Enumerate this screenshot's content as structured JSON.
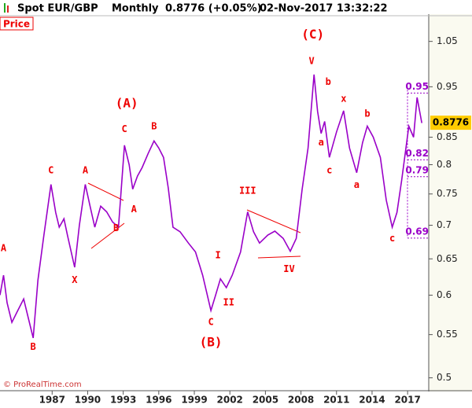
{
  "header": {
    "instrument": "Spot EUR/GBP",
    "period": "Monthly",
    "quote": "0.8776 (+0.05%)",
    "timestamp": "02-Nov-2017 13:32:22"
  },
  "chart_data": {
    "type": "line",
    "panel_label": "Price",
    "credit": "© ProRealTime.com",
    "log_scale": true,
    "xlim": [
      1982.6,
      2018.65
    ],
    "ylim": [
      0.486,
      1.115
    ],
    "xticks": [
      1987,
      1990,
      1993,
      1996,
      1999,
      2002,
      2005,
      2008,
      2011,
      2014,
      2017
    ],
    "yticks": [
      0.5,
      0.55,
      0.6,
      0.65,
      0.7,
      0.75,
      0.8,
      0.85,
      0.95,
      1.05
    ],
    "series": [
      {
        "name": "Spot EUR/GBP",
        "color": "#9a00c8",
        "x": [
          1982.6,
          1982.9,
          1983.2,
          1983.6,
          1984.1,
          1984.6,
          1985.0,
          1985.4,
          1985.8,
          1986.3,
          1986.9,
          1987.3,
          1987.6,
          1988.0,
          1988.3,
          1988.9,
          1989.3,
          1989.8,
          1990.2,
          1990.6,
          1991.1,
          1991.6,
          1992.1,
          1992.6,
          1993.1,
          1993.5,
          1993.8,
          1994.2,
          1994.6,
          1995.1,
          1995.6,
          1996.0,
          1996.4,
          1996.8,
          1997.2,
          1997.8,
          1998.5,
          1999.1,
          1999.7,
          2000.4,
          2000.8,
          2001.2,
          2001.7,
          2002.2,
          2002.9,
          2003.5,
          2004.0,
          2004.5,
          2005.2,
          2005.8,
          2006.5,
          2007.1,
          2007.6,
          2008.1,
          2008.6,
          2009.1,
          2009.4,
          2009.7,
          2010.0,
          2010.4,
          2011.0,
          2011.6,
          2012.1,
          2012.7,
          2013.2,
          2013.6,
          2014.1,
          2014.7,
          2015.2,
          2015.7,
          2016.1,
          2016.5,
          2017.1,
          2017.5,
          2017.8,
          2018.2
        ],
        "values": [
          0.6,
          0.627,
          0.59,
          0.565,
          0.58,
          0.595,
          0.57,
          0.546,
          0.62,
          0.684,
          0.766,
          0.72,
          0.697,
          0.71,
          0.684,
          0.638,
          0.7,
          0.766,
          0.73,
          0.697,
          0.73,
          0.721,
          0.705,
          0.697,
          0.835,
          0.8,
          0.758,
          0.78,
          0.795,
          0.82,
          0.843,
          0.83,
          0.813,
          0.76,
          0.697,
          0.69,
          0.673,
          0.66,
          0.627,
          0.58,
          0.6,
          0.622,
          0.61,
          0.627,
          0.66,
          0.721,
          0.69,
          0.673,
          0.685,
          0.691,
          0.68,
          0.661,
          0.68,
          0.758,
          0.83,
          0.976,
          0.9,
          0.857,
          0.88,
          0.813,
          0.86,
          0.901,
          0.83,
          0.786,
          0.84,
          0.871,
          0.85,
          0.813,
          0.74,
          0.697,
          0.72,
          0.773,
          0.871,
          0.85,
          0.928,
          0.877
        ]
      }
    ],
    "current": 0.8776,
    "levels": [
      0.95,
      0.82,
      0.79,
      0.69
    ],
    "annotations": [
      {
        "text": "A",
        "x": 1982.9,
        "y": 0.665
      },
      {
        "text": "B",
        "x": 1985.4,
        "y": 0.535
      },
      {
        "text": "C",
        "x": 1986.9,
        "y": 0.79
      },
      {
        "text": "X",
        "x": 1988.9,
        "y": 0.62
      },
      {
        "text": "A",
        "x": 1989.8,
        "y": 0.79
      },
      {
        "text": "B",
        "x": 1992.4,
        "y": 0.695
      },
      {
        "text": "A",
        "x": 1993.9,
        "y": 0.725
      },
      {
        "text": "C",
        "x": 1993.1,
        "y": 0.865
      },
      {
        "text": "(A)",
        "x": 1993.3,
        "y": 0.915
      },
      {
        "text": "B",
        "x": 1995.6,
        "y": 0.87
      },
      {
        "text": "C",
        "x": 2000.4,
        "y": 0.565
      },
      {
        "text": "(B)",
        "x": 2000.4,
        "y": 0.54
      },
      {
        "text": "I",
        "x": 2001.0,
        "y": 0.655
      },
      {
        "text": "II",
        "x": 2001.9,
        "y": 0.59
      },
      {
        "text": "III",
        "x": 2003.5,
        "y": 0.755
      },
      {
        "text": "IV",
        "x": 2007.0,
        "y": 0.635
      },
      {
        "text": "V",
        "x": 2008.9,
        "y": 1.005
      },
      {
        "text": "(C)",
        "x": 2009.0,
        "y": 1.065
      },
      {
        "text": "a",
        "x": 2009.7,
        "y": 0.84
      },
      {
        "text": "b",
        "x": 2010.3,
        "y": 0.96
      },
      {
        "text": "c",
        "x": 2010.4,
        "y": 0.79
      },
      {
        "text": "x",
        "x": 2011.6,
        "y": 0.925
      },
      {
        "text": "a",
        "x": 2012.7,
        "y": 0.765
      },
      {
        "text": "b",
        "x": 2013.6,
        "y": 0.895
      },
      {
        "text": "c",
        "x": 2015.7,
        "y": 0.68
      }
    ]
  }
}
